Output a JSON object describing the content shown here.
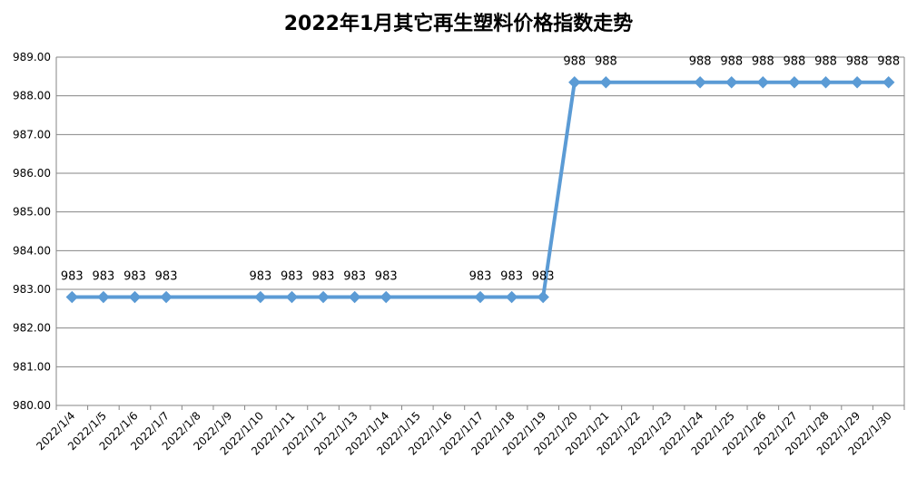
{
  "chart_data": {
    "type": "line",
    "title": "2022年1月其它再生塑料价格指数走势",
    "xlabel": "",
    "ylabel": "",
    "ylim": [
      980,
      989
    ],
    "y_ticks": [
      "980.00",
      "981.00",
      "982.00",
      "983.00",
      "984.00",
      "985.00",
      "986.00",
      "987.00",
      "988.00",
      "989.00"
    ],
    "x_categories": [
      "2022/1/4",
      "2022/1/5",
      "2022/1/6",
      "2022/1/7",
      "2022/1/8",
      "2022/1/9",
      "2022/1/10",
      "2022/1/11",
      "2022/1/12",
      "2022/1/13",
      "2022/1/14",
      "2022/1/15",
      "2022/1/16",
      "2022/1/17",
      "2022/1/18",
      "2022/1/19",
      "2022/1/20",
      "2022/1/21",
      "2022/1/22",
      "2022/1/23",
      "2022/1/24",
      "2022/1/25",
      "2022/1/26",
      "2022/1/27",
      "2022/1/28",
      "2022/1/29",
      "2022/1/30"
    ],
    "series": [
      {
        "color": "#5B9BD5",
        "points": [
          {
            "x": "2022/1/4",
            "y": 982.8,
            "label": "983"
          },
          {
            "x": "2022/1/5",
            "y": 982.8,
            "label": "983"
          },
          {
            "x": "2022/1/6",
            "y": 982.8,
            "label": "983"
          },
          {
            "x": "2022/1/7",
            "y": 982.8,
            "label": "983"
          },
          {
            "x": "2022/1/10",
            "y": 982.8,
            "label": "983"
          },
          {
            "x": "2022/1/11",
            "y": 982.8,
            "label": "983"
          },
          {
            "x": "2022/1/12",
            "y": 982.8,
            "label": "983"
          },
          {
            "x": "2022/1/13",
            "y": 982.8,
            "label": "983"
          },
          {
            "x": "2022/1/14",
            "y": 982.8,
            "label": "983"
          },
          {
            "x": "2022/1/17",
            "y": 982.8,
            "label": "983"
          },
          {
            "x": "2022/1/18",
            "y": 982.8,
            "label": "983"
          },
          {
            "x": "2022/1/19",
            "y": 982.8,
            "label": "983"
          },
          {
            "x": "2022/1/20",
            "y": 988.35,
            "label": "988"
          },
          {
            "x": "2022/1/21",
            "y": 988.35,
            "label": "988"
          },
          {
            "x": "2022/1/24",
            "y": 988.35,
            "label": "988"
          },
          {
            "x": "2022/1/25",
            "y": 988.35,
            "label": "988"
          },
          {
            "x": "2022/1/26",
            "y": 988.35,
            "label": "988"
          },
          {
            "x": "2022/1/27",
            "y": 988.35,
            "label": "988"
          },
          {
            "x": "2022/1/28",
            "y": 988.35,
            "label": "988"
          },
          {
            "x": "2022/1/29",
            "y": 988.35,
            "label": "988"
          },
          {
            "x": "2022/1/30",
            "y": 988.35,
            "label": "988"
          }
        ]
      }
    ],
    "grid": true,
    "legend": "none"
  }
}
